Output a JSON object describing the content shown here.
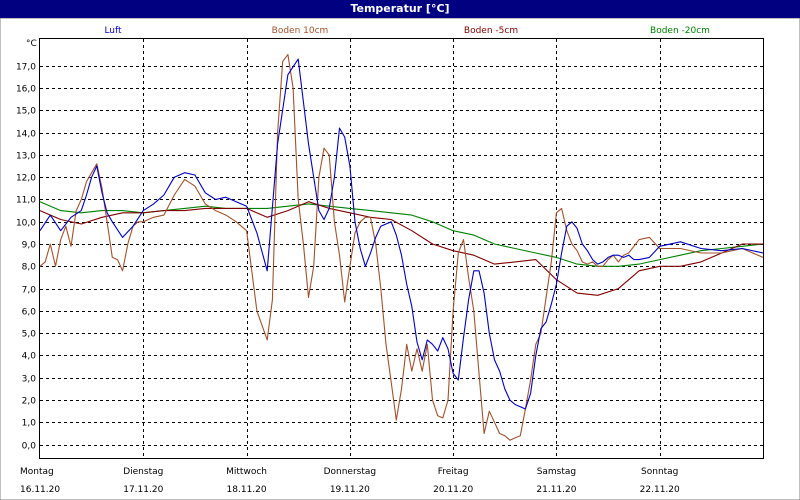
{
  "window": {
    "title": "Temperatur [°C]"
  },
  "chart_data": {
    "type": "line",
    "title": "Temperatur [°C]",
    "unit_label": "°C",
    "ylim": [
      -0.6,
      18.2
    ],
    "yticks": [
      0,
      1,
      2,
      3,
      4,
      5,
      6,
      7,
      8,
      9,
      10,
      11,
      12,
      13,
      14,
      15,
      16,
      17
    ],
    "ytick_labels": [
      "0,0",
      "1,0",
      "2,0",
      "3,0",
      "4,0",
      "5,0",
      "6,0",
      "7,0",
      "8,0",
      "9,0",
      "10,0",
      "11,0",
      "12,0",
      "13,0",
      "14,0",
      "15,0",
      "16,0",
      "17,0"
    ],
    "xlim": [
      0,
      7
    ],
    "x_days": [
      {
        "day": "Montag",
        "date": "16.11.20"
      },
      {
        "day": "Dienstag",
        "date": "17.11.20"
      },
      {
        "day": "Mittwoch",
        "date": "18.11.20"
      },
      {
        "day": "Donnerstag",
        "date": "19.11.20"
      },
      {
        "day": "Freitag",
        "date": "20.11.20"
      },
      {
        "day": "Samstag",
        "date": "21.11.20"
      },
      {
        "day": "Sonntag",
        "date": "22.11.20"
      }
    ],
    "grid": true,
    "legend": "top",
    "series": [
      {
        "name": "Luft",
        "color": "#0000c0",
        "x": [
          0.0,
          0.1,
          0.2,
          0.3,
          0.4,
          0.45,
          0.5,
          0.55,
          0.6,
          0.65,
          0.7,
          0.8,
          0.9,
          1.0,
          1.1,
          1.2,
          1.3,
          1.4,
          1.5,
          1.6,
          1.7,
          1.8,
          1.9,
          2.0,
          2.1,
          2.2,
          2.3,
          2.4,
          2.5,
          2.6,
          2.7,
          2.75,
          2.8,
          2.85,
          2.9,
          2.95,
          3.0,
          3.05,
          3.1,
          3.15,
          3.2,
          3.25,
          3.3,
          3.35,
          3.4,
          3.45,
          3.5,
          3.55,
          3.6,
          3.65,
          3.7,
          3.75,
          3.8,
          3.85,
          3.9,
          3.95,
          4.0,
          4.05,
          4.1,
          4.15,
          4.2,
          4.25,
          4.3,
          4.35,
          4.4,
          4.45,
          4.5,
          4.55,
          4.6,
          4.65,
          4.7,
          4.75,
          4.8,
          4.85,
          4.9,
          4.95,
          5.0,
          5.05,
          5.1,
          5.15,
          5.2,
          5.25,
          5.3,
          5.35,
          5.4,
          5.45,
          5.5,
          5.55,
          5.6,
          5.65,
          5.7,
          5.75,
          5.8,
          5.9,
          6.0,
          6.2,
          6.4,
          6.6,
          6.8,
          7.0
        ],
        "y": [
          9.6,
          10.3,
          9.6,
          10.2,
          10.5,
          11.2,
          12.0,
          12.5,
          11.3,
          10.4,
          10.0,
          9.3,
          9.8,
          10.5,
          10.8,
          11.2,
          12.0,
          12.2,
          12.1,
          11.3,
          11.0,
          11.1,
          10.9,
          10.7,
          9.5,
          7.8,
          13.5,
          16.6,
          17.3,
          13.5,
          10.5,
          10.1,
          10.6,
          12.0,
          14.2,
          13.8,
          12.5,
          10.0,
          8.8,
          8.0,
          8.6,
          9.3,
          9.8,
          9.9,
          10.0,
          9.4,
          8.5,
          7.2,
          6.2,
          4.6,
          3.8,
          4.7,
          4.5,
          4.2,
          4.8,
          4.3,
          3.2,
          2.9,
          4.8,
          6.5,
          7.8,
          7.8,
          6.8,
          5.0,
          3.8,
          3.3,
          2.5,
          2.0,
          1.8,
          1.7,
          1.6,
          2.3,
          4.0,
          5.2,
          5.5,
          6.3,
          7.2,
          8.6,
          9.8,
          10.0,
          9.7,
          9.0,
          8.7,
          8.3,
          8.1,
          8.2,
          8.4,
          8.5,
          8.5,
          8.4,
          8.5,
          8.3,
          8.3,
          8.4,
          8.9,
          9.1,
          8.8,
          8.7,
          8.8,
          8.6
        ]
      },
      {
        "name": "Boden 10cm",
        "color": "#a0522d",
        "x": [
          0.0,
          0.05,
          0.1,
          0.15,
          0.2,
          0.25,
          0.3,
          0.35,
          0.4,
          0.45,
          0.5,
          0.55,
          0.6,
          0.65,
          0.7,
          0.75,
          0.8,
          0.85,
          0.9,
          0.95,
          1.0,
          1.1,
          1.2,
          1.3,
          1.4,
          1.5,
          1.6,
          1.7,
          1.8,
          1.9,
          2.0,
          2.1,
          2.2,
          2.25,
          2.3,
          2.35,
          2.4,
          2.45,
          2.5,
          2.55,
          2.6,
          2.65,
          2.7,
          2.75,
          2.8,
          2.85,
          2.9,
          2.95,
          3.0,
          3.05,
          3.1,
          3.15,
          3.2,
          3.25,
          3.3,
          3.35,
          3.4,
          3.45,
          3.5,
          3.55,
          3.6,
          3.65,
          3.7,
          3.75,
          3.8,
          3.85,
          3.9,
          3.95,
          4.0,
          4.05,
          4.1,
          4.15,
          4.2,
          4.25,
          4.3,
          4.35,
          4.4,
          4.45,
          4.5,
          4.55,
          4.6,
          4.65,
          4.7,
          4.75,
          4.8,
          4.85,
          4.9,
          4.95,
          5.0,
          5.05,
          5.1,
          5.15,
          5.2,
          5.25,
          5.3,
          5.35,
          5.4,
          5.45,
          5.5,
          5.55,
          5.6,
          5.65,
          5.7,
          5.8,
          5.9,
          6.0,
          6.2,
          6.4,
          6.6,
          6.8,
          7.0
        ],
        "y": [
          8.0,
          8.2,
          9.0,
          8.0,
          9.2,
          9.8,
          8.9,
          10.5,
          11.0,
          11.8,
          12.2,
          12.6,
          11.5,
          10.0,
          8.4,
          8.3,
          7.8,
          9.0,
          9.8,
          10.0,
          10.0,
          10.2,
          10.3,
          11.2,
          11.9,
          11.6,
          10.8,
          10.5,
          10.3,
          10.0,
          9.6,
          6.0,
          4.7,
          6.5,
          14.0,
          17.2,
          17.5,
          16.0,
          11.0,
          9.0,
          6.6,
          8.0,
          12.0,
          13.3,
          13.0,
          10.0,
          8.5,
          6.4,
          8.0,
          9.5,
          10.0,
          10.2,
          10.2,
          9.0,
          7.0,
          4.5,
          2.8,
          1.1,
          2.5,
          4.5,
          3.3,
          4.3,
          3.3,
          4.5,
          2.0,
          1.3,
          1.2,
          2.0,
          6.0,
          8.6,
          9.2,
          7.5,
          6.0,
          3.2,
          0.5,
          1.5,
          1.0,
          0.5,
          0.4,
          0.2,
          0.3,
          0.4,
          1.6,
          2.9,
          4.5,
          5.0,
          6.6,
          8.2,
          10.4,
          10.6,
          9.6,
          9.0,
          8.7,
          8.2,
          8.1,
          8.2,
          8.0,
          8.0,
          8.3,
          8.5,
          8.2,
          8.5,
          8.6,
          9.2,
          9.3,
          8.8,
          8.8,
          8.6,
          8.6,
          8.8,
          8.4
        ]
      },
      {
        "name": "Boden -5cm",
        "color": "#800000",
        "x": [
          0.0,
          0.2,
          0.4,
          0.6,
          0.8,
          1.0,
          1.2,
          1.4,
          1.6,
          1.8,
          2.0,
          2.2,
          2.4,
          2.6,
          2.8,
          3.0,
          3.2,
          3.4,
          3.6,
          3.8,
          4.0,
          4.2,
          4.4,
          4.6,
          4.8,
          5.0,
          5.2,
          5.4,
          5.6,
          5.8,
          6.0,
          6.2,
          6.4,
          6.6,
          6.8,
          7.0
        ],
        "y": [
          10.5,
          10.1,
          9.9,
          10.2,
          10.4,
          10.4,
          10.5,
          10.5,
          10.6,
          10.6,
          10.6,
          10.2,
          10.5,
          10.9,
          10.6,
          10.4,
          10.2,
          10.1,
          9.6,
          9.0,
          8.7,
          8.5,
          8.1,
          8.2,
          8.3,
          7.4,
          6.8,
          6.7,
          7.0,
          7.8,
          8.0,
          8.0,
          8.2,
          8.6,
          9.0,
          9.0
        ]
      },
      {
        "name": "Boden -20cm",
        "color": "#008000",
        "x": [
          0.0,
          0.2,
          0.4,
          0.6,
          0.8,
          1.0,
          1.2,
          1.4,
          1.6,
          1.8,
          2.0,
          2.2,
          2.4,
          2.6,
          2.8,
          3.0,
          3.2,
          3.4,
          3.6,
          3.8,
          4.0,
          4.2,
          4.4,
          4.6,
          4.8,
          5.0,
          5.2,
          5.4,
          5.6,
          5.8,
          6.0,
          6.2,
          6.4,
          6.6,
          6.8,
          7.0
        ],
        "y": [
          10.9,
          10.5,
          10.4,
          10.5,
          10.5,
          10.4,
          10.5,
          10.6,
          10.7,
          10.6,
          10.6,
          10.6,
          10.7,
          10.8,
          10.7,
          10.6,
          10.5,
          10.4,
          10.3,
          10.0,
          9.6,
          9.4,
          9.0,
          8.8,
          8.6,
          8.4,
          8.1,
          8.0,
          8.0,
          8.1,
          8.3,
          8.5,
          8.7,
          8.8,
          8.9,
          9.0
        ]
      }
    ]
  }
}
